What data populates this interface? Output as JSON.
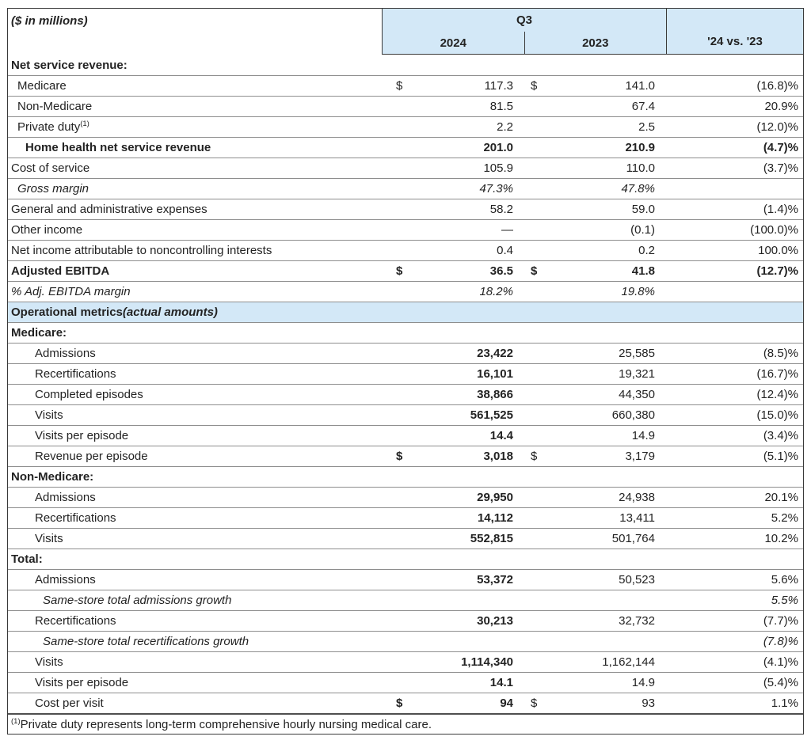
{
  "colors": {
    "header_blue": "#d3e8f7",
    "row_border": "#8e8e8e",
    "outer_border": "#3a3a3a",
    "text": "#232323"
  },
  "table": {
    "units_label": "($ in millions)",
    "period_label": "Q3",
    "columns": {
      "y2024": "2024",
      "y2023": "2023",
      "change": "'24 vs. '23"
    },
    "rows": [
      {
        "label": "Net service revenue:",
        "bold_row": true,
        "indent": 0
      },
      {
        "label": "Medicare",
        "indent": 1,
        "d24": "$",
        "v24": "117.3",
        "d23": "$",
        "v23": "141.0",
        "chg": "(16.8)%"
      },
      {
        "label": "Non-Medicare",
        "indent": 1,
        "v24": "81.5",
        "v23": "67.4",
        "chg": "20.9%"
      },
      {
        "label": "Private duty",
        "sup": "(1)",
        "indent": 1,
        "v24": "2.2",
        "v23": "2.5",
        "chg": "(12.0)%"
      },
      {
        "label": "Home health net service revenue",
        "indent": 2,
        "bold_row": true,
        "v24": "201.0",
        "v23": "210.9",
        "chg": "(4.7)%"
      },
      {
        "label": "Cost of service",
        "indent": 0,
        "v24": "105.9",
        "v23": "110.0",
        "chg": "(3.7)%"
      },
      {
        "label": "Gross margin",
        "indent": 1,
        "italic": true,
        "v24": "47.3%",
        "v23": "47.8%",
        "chg": ""
      },
      {
        "label": "General and administrative expenses",
        "indent": 0,
        "v24": "58.2",
        "v23": "59.0",
        "chg": "(1.4)%"
      },
      {
        "label": "Other income",
        "indent": 0,
        "v24": "—",
        "v23": "(0.1)",
        "chg": "(100.0)%"
      },
      {
        "label": "Net income attributable to noncontrolling interests",
        "indent": 0,
        "v24": "0.4",
        "v23": "0.2",
        "chg": "100.0%"
      },
      {
        "label": "Adjusted EBITDA",
        "indent": 0,
        "bold_row": true,
        "d24": "$",
        "v24": "36.5",
        "d23": "$",
        "v23": "41.8",
        "chg": "(12.7)%"
      },
      {
        "label": "% Adj. EBITDA margin",
        "indent": 0,
        "italic": true,
        "v24": "18.2%",
        "v23": "19.8%",
        "chg": ""
      },
      {
        "label": "Operational metrics ",
        "label_italic": "(actual amounts)",
        "bold_row": true,
        "blue": true,
        "indent": 0
      },
      {
        "label": "Medicare:",
        "bold_row": true,
        "indent": 0
      },
      {
        "label": "Admissions",
        "indent": 3,
        "v24": "23,422",
        "bold24": true,
        "v23": "25,585",
        "chg": "(8.5)%"
      },
      {
        "label": "Recertifications",
        "indent": 3,
        "v24": "16,101",
        "bold24": true,
        "v23": "19,321",
        "chg": "(16.7)%"
      },
      {
        "label": "Completed episodes",
        "indent": 3,
        "v24": "38,866",
        "bold24": true,
        "v23": "44,350",
        "chg": "(12.4)%"
      },
      {
        "label": "Visits",
        "indent": 3,
        "v24": "561,525",
        "bold24": true,
        "v23": "660,380",
        "chg": "(15.0)%"
      },
      {
        "label": "Visits per episode",
        "indent": 3,
        "v24": "14.4",
        "bold24": true,
        "v23": "14.9",
        "chg": "(3.4)%"
      },
      {
        "label": "Revenue per episode",
        "indent": 3,
        "d24": "$",
        "v24": "3,018",
        "bold24": true,
        "d23": "$",
        "v23": "3,179",
        "chg": "(5.1)%"
      },
      {
        "label": "Non-Medicare:",
        "bold_row": true,
        "indent": 0
      },
      {
        "label": "Admissions",
        "indent": 3,
        "v24": "29,950",
        "bold24": true,
        "v23": "24,938",
        "chg": "20.1%"
      },
      {
        "label": "Recertifications",
        "indent": 3,
        "v24": "14,112",
        "bold24": true,
        "v23": "13,411",
        "chg": "5.2%"
      },
      {
        "label": "Visits",
        "indent": 3,
        "v24": "552,815",
        "bold24": true,
        "v23": "501,764",
        "chg": "10.2%"
      },
      {
        "label": "Total:",
        "bold_row": true,
        "indent": 0
      },
      {
        "label": "Admissions",
        "indent": 3,
        "v24": "53,372",
        "bold24": true,
        "v23": "50,523",
        "chg": "5.6%"
      },
      {
        "label": "Same-store total admissions growth",
        "indent": 4,
        "italic": true,
        "chg": "5.5%"
      },
      {
        "label": "Recertifications",
        "indent": 3,
        "v24": "30,213",
        "bold24": true,
        "v23": "32,732",
        "chg": "(7.7)%"
      },
      {
        "label": "Same-store total recertifications growth",
        "indent": 4,
        "italic": true,
        "chg": "(7.8)%"
      },
      {
        "label": "Visits",
        "indent": 3,
        "v24": "1,114,340",
        "bold24": true,
        "v23": "1,162,144",
        "chg": "(4.1)%"
      },
      {
        "label": "Visits per episode",
        "indent": 3,
        "v24": "14.1",
        "bold24": true,
        "v23": "14.9",
        "chg": "(5.4)%"
      },
      {
        "label": "Cost per visit",
        "indent": 3,
        "d24": "$",
        "v24": "94",
        "bold24": true,
        "d23": "$",
        "v23": "93",
        "chg": "1.1%"
      },
      {
        "footnote": true,
        "sup": "(1)",
        "label": "Private duty represents long-term comprehensive hourly nursing medical care."
      }
    ]
  }
}
